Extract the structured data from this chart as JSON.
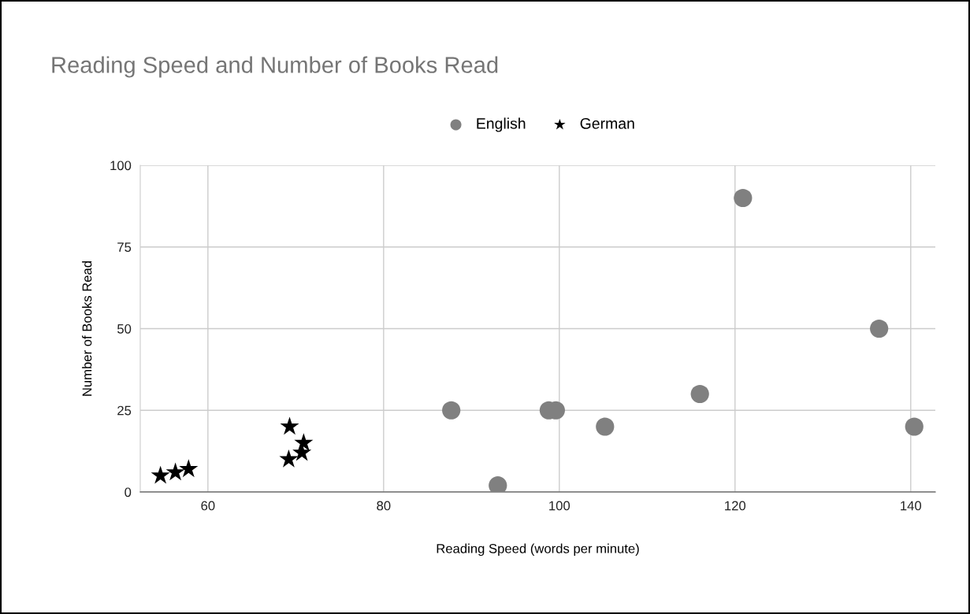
{
  "chart_data": {
    "type": "scatter",
    "title": "Reading Speed and Number of Books Read",
    "xlabel": "Reading Speed (words per minute)",
    "ylabel": "Number of Books Read",
    "series": [
      {
        "name": "English",
        "color": "#808080",
        "marker": "circle",
        "x": [
          87.7,
          93.0,
          98.8,
          99.6,
          105.2,
          116.0,
          120.9,
          136.4,
          140.4
        ],
        "values": [
          25,
          2,
          25,
          25,
          20,
          30,
          90,
          50,
          20
        ]
      },
      {
        "name": "German",
        "color": "#000000",
        "marker": "star",
        "x": [
          54.6,
          56.3,
          57.8,
          69.3,
          69.2,
          70.9,
          70.7
        ],
        "values": [
          5,
          6,
          7,
          20,
          10,
          15,
          12
        ]
      }
    ],
    "xlim": [
      52.3,
      142.8
    ],
    "xticks": [
      60,
      80,
      100,
      120,
      140
    ],
    "ylim": [
      0,
      100
    ],
    "yticks": [
      0,
      25,
      50,
      75,
      100
    ],
    "grid": true,
    "legend": "top"
  }
}
